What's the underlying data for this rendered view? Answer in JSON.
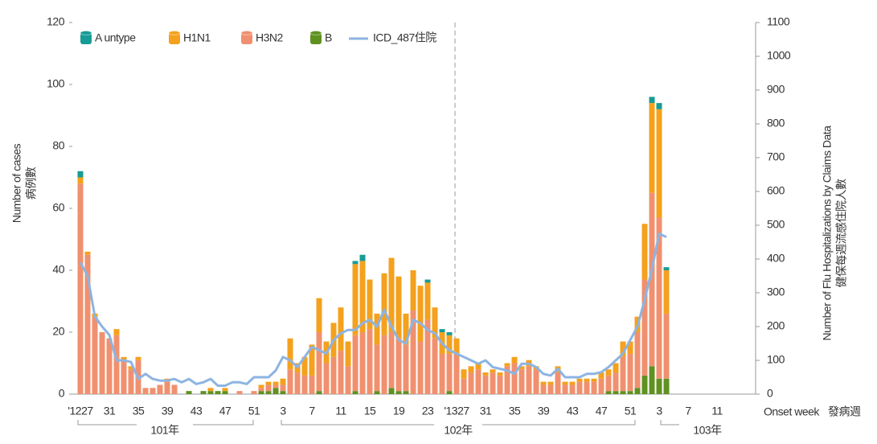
{
  "chart_data": {
    "type": "bar",
    "stacked": true,
    "y_label": "Number of cases",
    "y_label_2": "病例數",
    "y2_label": "Number of Flu Hospitalizations by Claims Data",
    "y2_label_2": "健保每週流感住院人數",
    "x_label": "Onset week",
    "x_label_2": "發病週",
    "year_labels": [
      "101年",
      "102年",
      "103年"
    ],
    "legend": "top-left",
    "ylim": [
      0,
      120
    ],
    "yticks": [
      0,
      20,
      40,
      60,
      80,
      100,
      120
    ],
    "y2lim": [
      0,
      1100
    ],
    "y2ticks": [
      0,
      100,
      200,
      300,
      400,
      500,
      600,
      700,
      800,
      900,
      1000,
      1100
    ],
    "categories": [
      "'1227",
      null,
      null,
      null,
      "31",
      null,
      null,
      null,
      "35",
      null,
      null,
      null,
      "39",
      null,
      null,
      null,
      "43",
      null,
      null,
      null,
      "47",
      null,
      null,
      null,
      "51",
      null,
      null,
      null,
      "3",
      null,
      null,
      null,
      "7",
      null,
      null,
      null,
      "11",
      null,
      null,
      null,
      "15",
      null,
      null,
      null,
      "19",
      null,
      null,
      null,
      "23",
      null,
      null,
      null,
      "'1327",
      null,
      null,
      null,
      "31",
      null,
      null,
      null,
      "35",
      null,
      null,
      null,
      "39",
      null,
      null,
      null,
      "43",
      null,
      null,
      null,
      "47",
      null,
      null,
      null,
      "51",
      null,
      null,
      null,
      "3",
      null,
      null,
      null,
      "7",
      null,
      null,
      null,
      "11"
    ],
    "series": [
      {
        "name": "B",
        "color": "#5f9120",
        "values": [
          0,
          0,
          0,
          0,
          0,
          0,
          0,
          0,
          0,
          0,
          0,
          0,
          0,
          0,
          0,
          1,
          0,
          1,
          1,
          1,
          1,
          0,
          0,
          0,
          0,
          1,
          1,
          2,
          1,
          0,
          0,
          0,
          0,
          1,
          0,
          0,
          0,
          0,
          1,
          0,
          0,
          1,
          0,
          2,
          1,
          1,
          0,
          0,
          0,
          0,
          0,
          1,
          0,
          0,
          0,
          0,
          0,
          0,
          0,
          0,
          0,
          0,
          0,
          0,
          0,
          0,
          0,
          0,
          0,
          0,
          0,
          0,
          0,
          1,
          1,
          1,
          1,
          2,
          6,
          9,
          5,
          5,
          null,
          null,
          null,
          null,
          null,
          null,
          null
        ]
      },
      {
        "name": "H3N2",
        "color": "#f0906f",
        "values": [
          68,
          45,
          25,
          20,
          18,
          19,
          11,
          8,
          11,
          2,
          2,
          3,
          4,
          3,
          0,
          0,
          0,
          0,
          0,
          0,
          0,
          0,
          1,
          0,
          1,
          1,
          2,
          1,
          2,
          8,
          7,
          6,
          6,
          19,
          10,
          12,
          14,
          9,
          18,
          20,
          21,
          15,
          19,
          18,
          17,
          15,
          27,
          17,
          24,
          18,
          13,
          12,
          13,
          5,
          7,
          8,
          6,
          7,
          6,
          9,
          10,
          8,
          9,
          8,
          3,
          3,
          7,
          3,
          3,
          4,
          4,
          4,
          5,
          5,
          6,
          11,
          12,
          18,
          31,
          56,
          52,
          21,
          null,
          null,
          null,
          null,
          null,
          null,
          null
        ]
      },
      {
        "name": "H1N1",
        "color": "#f4a11d",
        "values": [
          2,
          1,
          1,
          0,
          0,
          2,
          1,
          1,
          1,
          0,
          0,
          0,
          1,
          0,
          0,
          0,
          0,
          0,
          1,
          0,
          1,
          0,
          0,
          0,
          0,
          1,
          1,
          1,
          2,
          10,
          3,
          6,
          10,
          11,
          7,
          11,
          14,
          8,
          23,
          23,
          16,
          10,
          20,
          24,
          20,
          10,
          13,
          18,
          12,
          10,
          7,
          6,
          5,
          3,
          2,
          2,
          1,
          1,
          1,
          1,
          2,
          1,
          2,
          1,
          1,
          1,
          2,
          1,
          1,
          1,
          1,
          1,
          2,
          2,
          3,
          5,
          4,
          5,
          18,
          29,
          35,
          14,
          null,
          null,
          null,
          null,
          null,
          null,
          null
        ]
      },
      {
        "name": "A untype",
        "color": "#179b95",
        "values": [
          2,
          0,
          0,
          0,
          0,
          0,
          0,
          0,
          0,
          0,
          0,
          0,
          0,
          0,
          0,
          0,
          0,
          0,
          0,
          0,
          0,
          0,
          0,
          0,
          0,
          0,
          0,
          0,
          0,
          0,
          0,
          0,
          0,
          0,
          0,
          0,
          0,
          0,
          1,
          2,
          0,
          0,
          0,
          0,
          0,
          0,
          0,
          0,
          1,
          0,
          1,
          1,
          0,
          0,
          0,
          0,
          0,
          0,
          0,
          0,
          0,
          0,
          0,
          0,
          0,
          0,
          0,
          0,
          0,
          0,
          0,
          0,
          0,
          0,
          0,
          0,
          0,
          0,
          0,
          2,
          2,
          1,
          null,
          null,
          null,
          null,
          null,
          null,
          null
        ]
      },
      {
        "name": "ICD_487住院",
        "type": "line",
        "axis": "y2",
        "color": "#8db4e2",
        "values": [
          390,
          350,
          230,
          200,
          175,
          100,
          100,
          95,
          45,
          60,
          45,
          40,
          40,
          45,
          35,
          45,
          30,
          35,
          45,
          25,
          25,
          35,
          35,
          30,
          50,
          50,
          50,
          70,
          110,
          100,
          80,
          110,
          140,
          130,
          120,
          160,
          180,
          190,
          190,
          210,
          220,
          200,
          250,
          200,
          160,
          150,
          220,
          210,
          190,
          180,
          150,
          130,
          120,
          110,
          100,
          90,
          100,
          80,
          75,
          70,
          60,
          90,
          90,
          80,
          60,
          55,
          75,
          50,
          50,
          50,
          60,
          60,
          65,
          80,
          100,
          120,
          160,
          200,
          280,
          370,
          475,
          465,
          null,
          null,
          null,
          null,
          null,
          null,
          null
        ]
      }
    ]
  }
}
